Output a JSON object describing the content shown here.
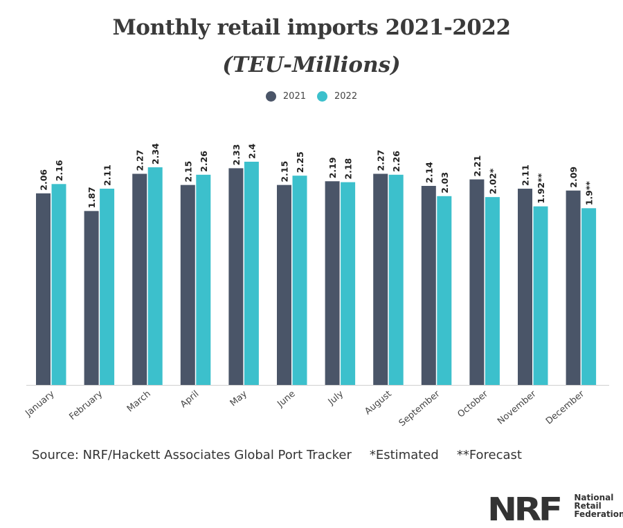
{
  "chart_data": {
    "type": "bar",
    "title": "Monthly retail imports 2021-2022",
    "subtitle": "(TEU-Millions)",
    "xlabel": "",
    "ylabel": "",
    "ylim": [
      0,
      2.4
    ],
    "grid": false,
    "legend_position": "top-center",
    "categories": [
      "January",
      "February",
      "March",
      "April",
      "May",
      "June",
      "July",
      "August",
      "September",
      "October",
      "November",
      "December"
    ],
    "series": [
      {
        "name": "2021",
        "color": "#4a5568",
        "values": [
          2.06,
          1.87,
          2.27,
          2.15,
          2.33,
          2.15,
          2.19,
          2.27,
          2.14,
          2.21,
          2.11,
          2.09
        ],
        "labels": [
          "2.06",
          "1.87",
          "2.27",
          "2.15",
          "2.33",
          "2.15",
          "2.19",
          "2.27",
          "2.14",
          "2.21",
          "2.11",
          "2.09"
        ]
      },
      {
        "name": "2022",
        "color": "#3cc0cc",
        "values": [
          2.16,
          2.11,
          2.34,
          2.26,
          2.4,
          2.25,
          2.18,
          2.26,
          2.03,
          2.02,
          1.92,
          1.9
        ],
        "labels": [
          "2.16",
          "2.11",
          "2.34",
          "2.26",
          "2.4",
          "2.25",
          "2.18",
          "2.26",
          "2.03",
          "2.02*",
          "1.92**",
          "1.9**"
        ]
      }
    ],
    "annotations": {
      "source": "Source: NRF/Hackett Associates Global Port Tracker",
      "estimated": "*Estimated",
      "forecast": "**Forecast"
    }
  },
  "logo": {
    "abbr": "NRF",
    "line1": "National",
    "line2": "Retail",
    "line3": "Federation"
  }
}
